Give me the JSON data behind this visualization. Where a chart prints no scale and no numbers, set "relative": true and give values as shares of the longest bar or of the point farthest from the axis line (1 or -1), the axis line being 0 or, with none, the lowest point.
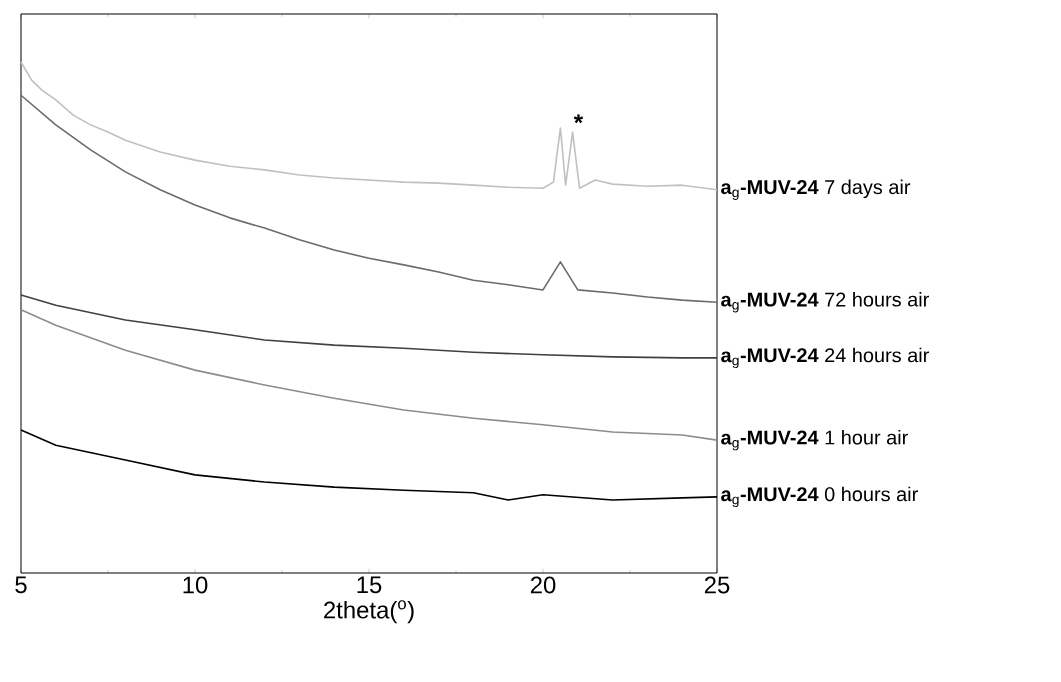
{
  "chart_data": {
    "type": "line",
    "relative": true,
    "xlabel": "2theta($^{o}$)",
    "xlim": [
      5,
      25
    ],
    "xticks": [
      5,
      10,
      15,
      20,
      25
    ],
    "annotations": [
      {
        "text": "*",
        "x": 20.85,
        "y": 0.863
      }
    ],
    "series": [
      {
        "name": "**a**$_{g}$**-MUV-24** 7 days air",
        "color": "#c0c0c0",
        "x": [
          5,
          5.3,
          5.6,
          6,
          6.5,
          7,
          7.5,
          8,
          9,
          10,
          11,
          12,
          13,
          14,
          15,
          16,
          17,
          18,
          19,
          20,
          20.3,
          20.5,
          20.65,
          20.85,
          21.05,
          21.5,
          22,
          23,
          24,
          25
        ],
        "values": [
          1.0,
          0.965,
          0.945,
          0.926,
          0.896,
          0.877,
          0.863,
          0.847,
          0.824,
          0.808,
          0.796,
          0.789,
          0.779,
          0.773,
          0.769,
          0.765,
          0.763,
          0.759,
          0.755,
          0.753,
          0.765,
          0.871,
          0.759,
          0.863,
          0.753,
          0.769,
          0.761,
          0.757,
          0.759,
          0.75
        ]
      },
      {
        "name": "**a**$_{g}$**-MUV-24** 72 hours air",
        "color": "#6b6b6b",
        "x": [
          5,
          6,
          7,
          8,
          9,
          10,
          11,
          12,
          13,
          14,
          15,
          16,
          17,
          18,
          19,
          20,
          20.5,
          21,
          22,
          23,
          24,
          25
        ],
        "values": [
          0.935,
          0.877,
          0.828,
          0.785,
          0.75,
          0.72,
          0.695,
          0.675,
          0.652,
          0.632,
          0.616,
          0.603,
          0.589,
          0.573,
          0.564,
          0.554,
          0.609,
          0.554,
          0.548,
          0.54,
          0.534,
          0.53
        ]
      },
      {
        "name": "**a**$_{g}$**-MUV-24** 24 hours air",
        "color": "#404040",
        "x": [
          5,
          6,
          8,
          10,
          12,
          14,
          16,
          18,
          20,
          22,
          24,
          25
        ],
        "values": [
          0.544,
          0.524,
          0.495,
          0.476,
          0.456,
          0.446,
          0.44,
          0.432,
          0.427,
          0.423,
          0.421,
          0.421
        ]
      },
      {
        "name": "**a**$_{g}$**-MUV-24** 1 hour air",
        "color": "#8c8c8c",
        "x": [
          5,
          6,
          8,
          10,
          12,
          14,
          16,
          18,
          20,
          22,
          24,
          25
        ],
        "values": [
          0.515,
          0.485,
          0.436,
          0.397,
          0.368,
          0.342,
          0.319,
          0.303,
          0.29,
          0.276,
          0.27,
          0.26
        ]
      },
      {
        "name": "**a**$_{g}$**-MUV-24** 0 hours air",
        "color": "#000000",
        "x": [
          5,
          6,
          8,
          10,
          12,
          14,
          16,
          18,
          19,
          20,
          22,
          24,
          25
        ],
        "values": [
          0.28,
          0.25,
          0.221,
          0.192,
          0.178,
          0.168,
          0.162,
          0.157,
          0.143,
          0.153,
          0.143,
          0.147,
          0.149
        ]
      }
    ]
  }
}
